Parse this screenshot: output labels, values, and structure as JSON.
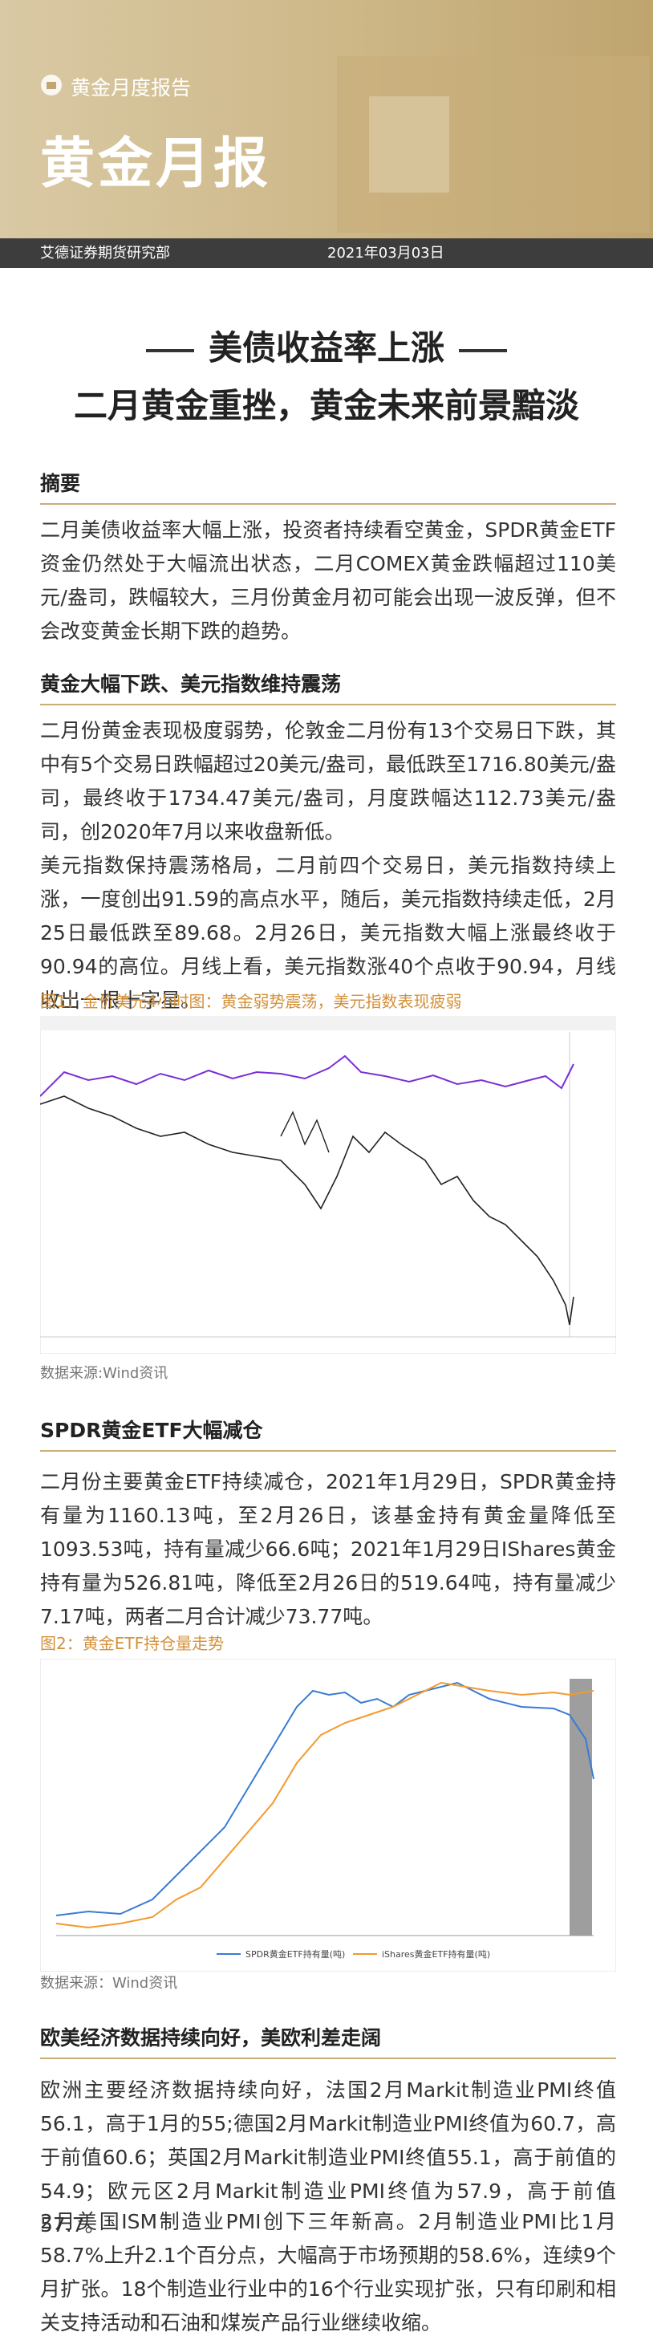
{
  "header": {
    "label": "黄金月度报告",
    "title": "黄金月报",
    "department": "艾德证券期货研究部",
    "date": "2021年03月03日"
  },
  "headline": {
    "line1": "美债收益率上涨",
    "line2": "二月黄金重挫，黄金未来前景黯淡"
  },
  "sections": [
    {
      "heading": "摘要",
      "paragraphs": [
        "二月美债收益率大幅上涨，投资者持续看空黄金，SPDR黄金ETF资金仍然处于大幅流出状态，二月COMEX黄金跌幅超过110美元/盎司，跌幅较大，三月份黄金月初可能会出现一波反弹，但不会改变黄金长期下跌的趋势。"
      ]
    },
    {
      "heading": "黄金大幅下跌、美元指数维持震荡",
      "paragraphs": [
        "二月份黄金表现极度弱势，伦敦金二月份有13个交易日下跌，其中有5个交易日跌幅超过20美元/盎司，最低跌至1716.80美元/盎司，最终收于1734.47美元/盎司，月度跌幅达112.73美元/盎司，创2020年7月以来收盘新低。",
        "美元指数保持震荡格局，二月前四个交易日，美元指数持续上涨，一度创出91.59的高点水平，随后，美元指数持续走低，2月25日最低跌至89.68。2月26日，美元指数大幅上涨最终收于90.94的高位。月线上看，美元指数涨40个点收于90.94，月线收出一根十字星。"
      ],
      "figure": {
        "caption": "图1：金价美元4小时图：黄金弱势震荡，美元指数表现疲弱",
        "source": "数据来源:Wind资讯"
      }
    },
    {
      "heading": "SPDR黄金ETF大幅减仓",
      "paragraphs": [
        "二月份主要黄金ETF持续减仓，2021年1月29日，SPDR黄金持有量为1160.13吨，至2月26日，该基金持有黄金量降低至1093.53吨，持有量减少66.6吨；2021年1月29日IShares黄金持有量为526.81吨，降低至2月26日的519.64吨，持有量减少7.17吨，两者二月合计减少73.77吨。"
      ],
      "figure": {
        "caption": "图2：黄金ETF持仓量走势",
        "source": "数据来源：Wind资讯",
        "legend": [
          "SPDR黄金ETF持有量(吨)",
          "iShares黄金ETF持有量(吨)"
        ]
      }
    },
    {
      "heading": "欧美经济数据持续向好，美欧利差走阔",
      "paragraphs": [
        "欧洲主要经济数据持续向好，法国2月Markit制造业PMI终值56.1，高于1月的55;德国2月Markit制造业PMI终值为60.7，高于前值60.6；英国2月Markit制造业PMI终值55.1，高于前值的54.9；欧元区2月Markit制造业PMI终值为57.9，高于前值57.7。",
        "2月美国ISM制造业PMI创下三年新高。2月制造业PMI比1月58.7%上升2.1个百分点，大幅高于市场预期的58.6%，连续9个月扩张。18个制造业行业中的16个行业实现扩张，只有印刷和相关支持活动和石油和煤炭产品行业继续收缩。"
      ]
    }
  ]
}
